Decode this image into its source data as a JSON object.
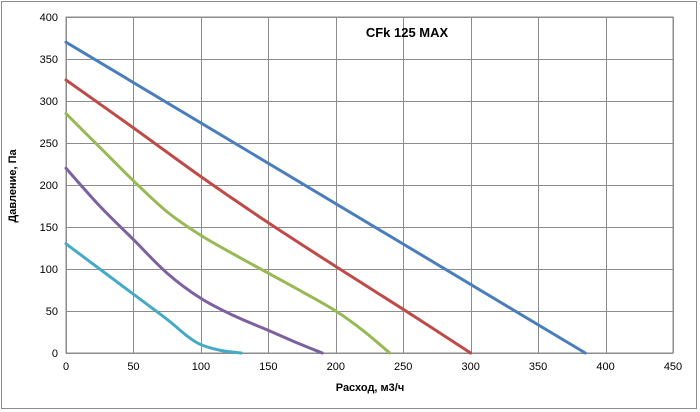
{
  "chart_data": {
    "type": "line",
    "title": "CFk 125 MAX",
    "xlabel": "Расход, м3/ч",
    "ylabel": "Давление, Па",
    "xlim": [
      0,
      450
    ],
    "ylim": [
      0,
      400
    ],
    "xticks": [
      "0",
      "50",
      "100",
      "150",
      "200",
      "250",
      "300",
      "350",
      "400",
      "450"
    ],
    "yticks": [
      "0",
      "50",
      "100",
      "150",
      "200",
      "250",
      "300",
      "350",
      "400"
    ],
    "grid": true,
    "legend": "none",
    "series": [
      {
        "color": "#4a7ebb",
        "points": [
          [
            0,
            370
          ],
          [
            385,
            0
          ]
        ]
      },
      {
        "color": "#be4b48",
        "points": [
          [
            0,
            325
          ],
          [
            50,
            268
          ],
          [
            100,
            210
          ],
          [
            150,
            155
          ],
          [
            200,
            103
          ],
          [
            250,
            52
          ],
          [
            300,
            0
          ]
        ]
      },
      {
        "color": "#98b954",
        "points": [
          [
            0,
            285
          ],
          [
            25,
            245
          ],
          [
            50,
            205
          ],
          [
            75,
            168
          ],
          [
            100,
            140
          ],
          [
            125,
            117
          ],
          [
            150,
            95
          ],
          [
            175,
            73
          ],
          [
            200,
            50
          ],
          [
            220,
            27
          ],
          [
            240,
            0
          ]
        ]
      },
      {
        "color": "#7d60a0",
        "points": [
          [
            0,
            220
          ],
          [
            25,
            175
          ],
          [
            50,
            135
          ],
          [
            75,
            95
          ],
          [
            100,
            65
          ],
          [
            125,
            44
          ],
          [
            150,
            27
          ],
          [
            170,
            13
          ],
          [
            190,
            0
          ]
        ]
      },
      {
        "color": "#46aac5",
        "points": [
          [
            0,
            130
          ],
          [
            25,
            100
          ],
          [
            50,
            70
          ],
          [
            75,
            40
          ],
          [
            90,
            20
          ],
          [
            100,
            10
          ],
          [
            115,
            3
          ],
          [
            130,
            0
          ]
        ]
      }
    ]
  }
}
